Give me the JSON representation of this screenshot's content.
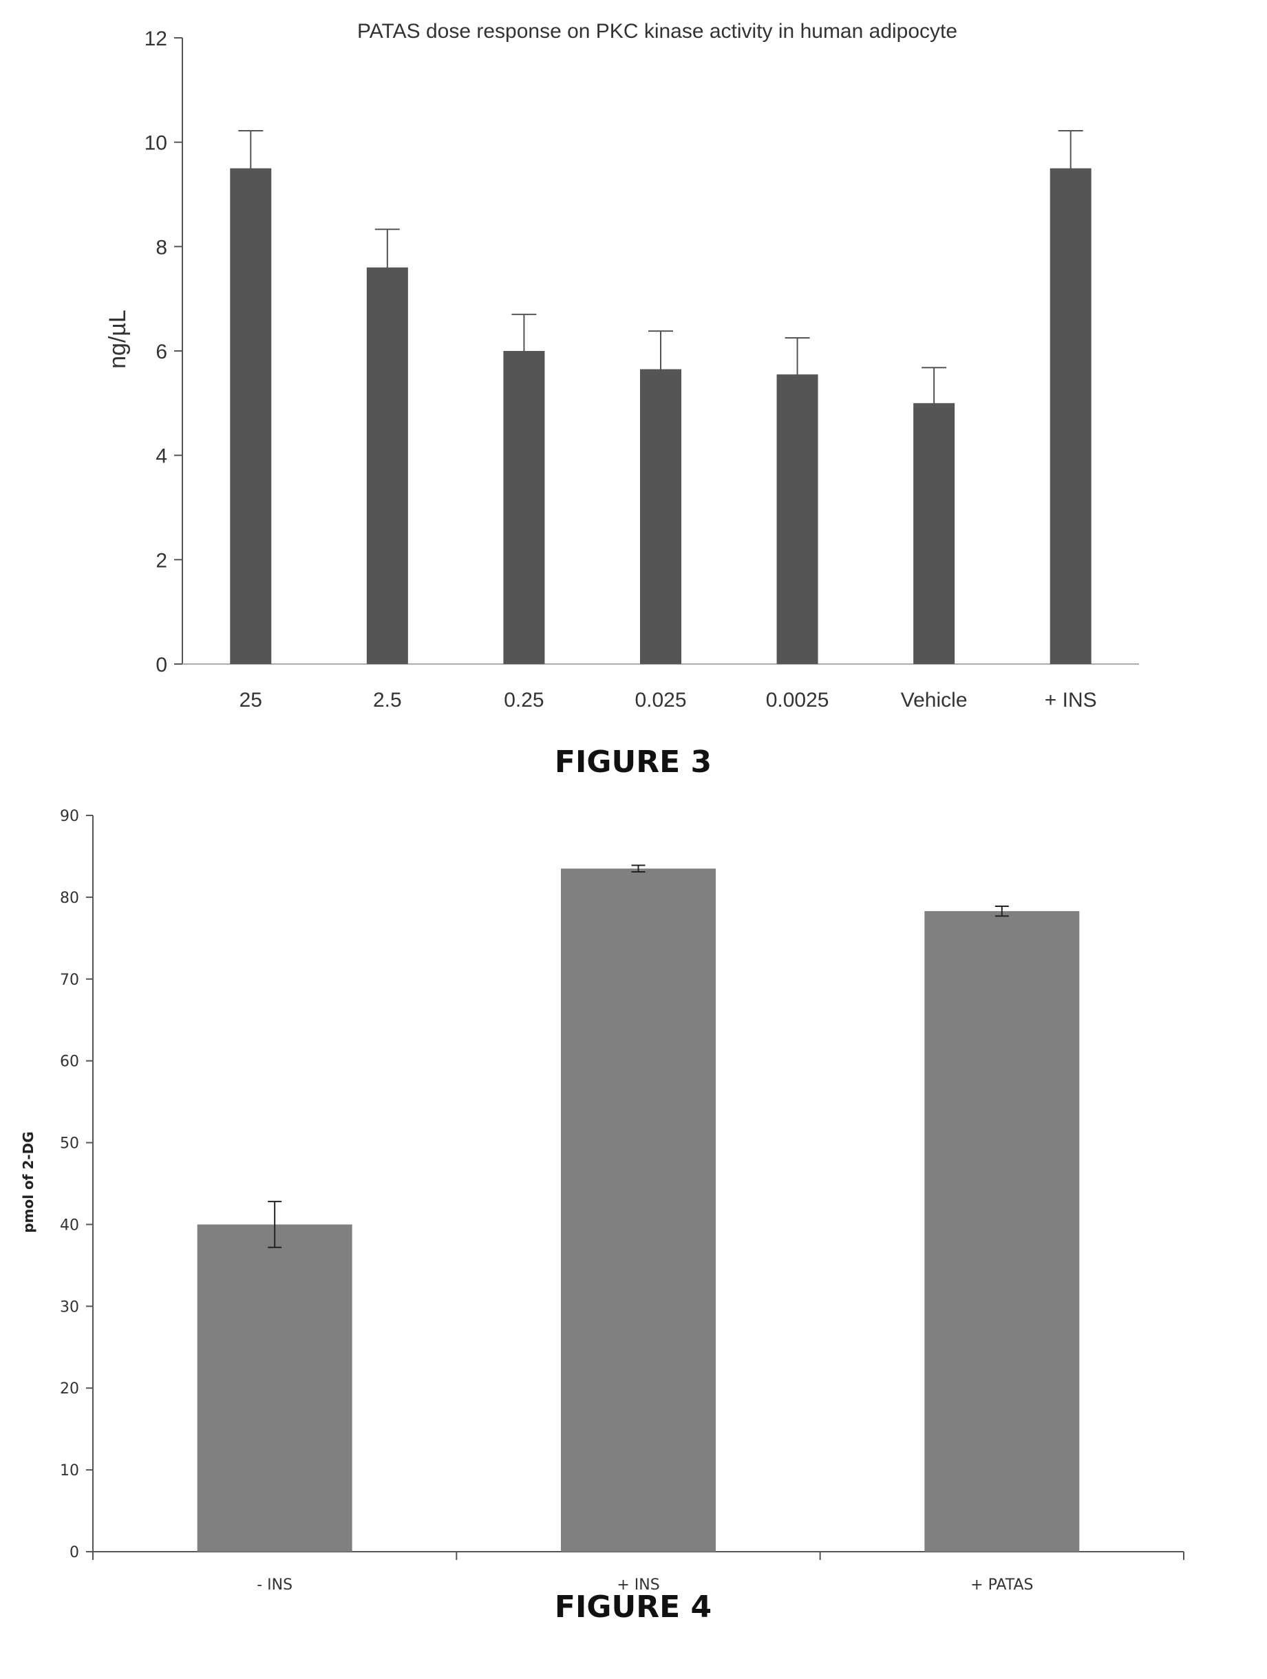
{
  "figure3": {
    "caption": "FIGURE 3",
    "chart_data": {
      "type": "bar",
      "title": "PATAS dose response on PKC kinase activity  in human adipocyte",
      "xlabel": "",
      "ylabel": "ng/µL",
      "ylim": [
        0,
        12
      ],
      "yticks": [
        "0",
        "2",
        "4",
        "6",
        "8",
        "10",
        "12"
      ],
      "categories": [
        "25",
        "2.5",
        "0.25",
        "0.025",
        "0.0025",
        "Vehicle",
        "+ INS"
      ],
      "values": [
        9.5,
        7.6,
        6.0,
        5.65,
        5.55,
        5.0,
        9.5
      ],
      "errors": [
        0.72,
        0.73,
        0.7,
        0.73,
        0.7,
        0.68,
        0.72
      ],
      "bar_color": "#555555",
      "grid": false,
      "legend": "none"
    }
  },
  "figure4": {
    "caption": "FIGURE 4",
    "chart_data": {
      "type": "bar",
      "title": "",
      "xlabel": "",
      "ylabel": "pmol of 2-DG",
      "ylim": [
        0,
        90
      ],
      "yticks": [
        "0",
        "10",
        "20",
        "30",
        "40",
        "50",
        "60",
        "70",
        "80",
        "90"
      ],
      "categories": [
        "- INS",
        "+ INS",
        "+ PATAS"
      ],
      "values": [
        40,
        83.5,
        78.3
      ],
      "errors": [
        2.8,
        0.4,
        0.6
      ],
      "bar_color": "#808080",
      "grid": false,
      "legend": "none"
    }
  }
}
